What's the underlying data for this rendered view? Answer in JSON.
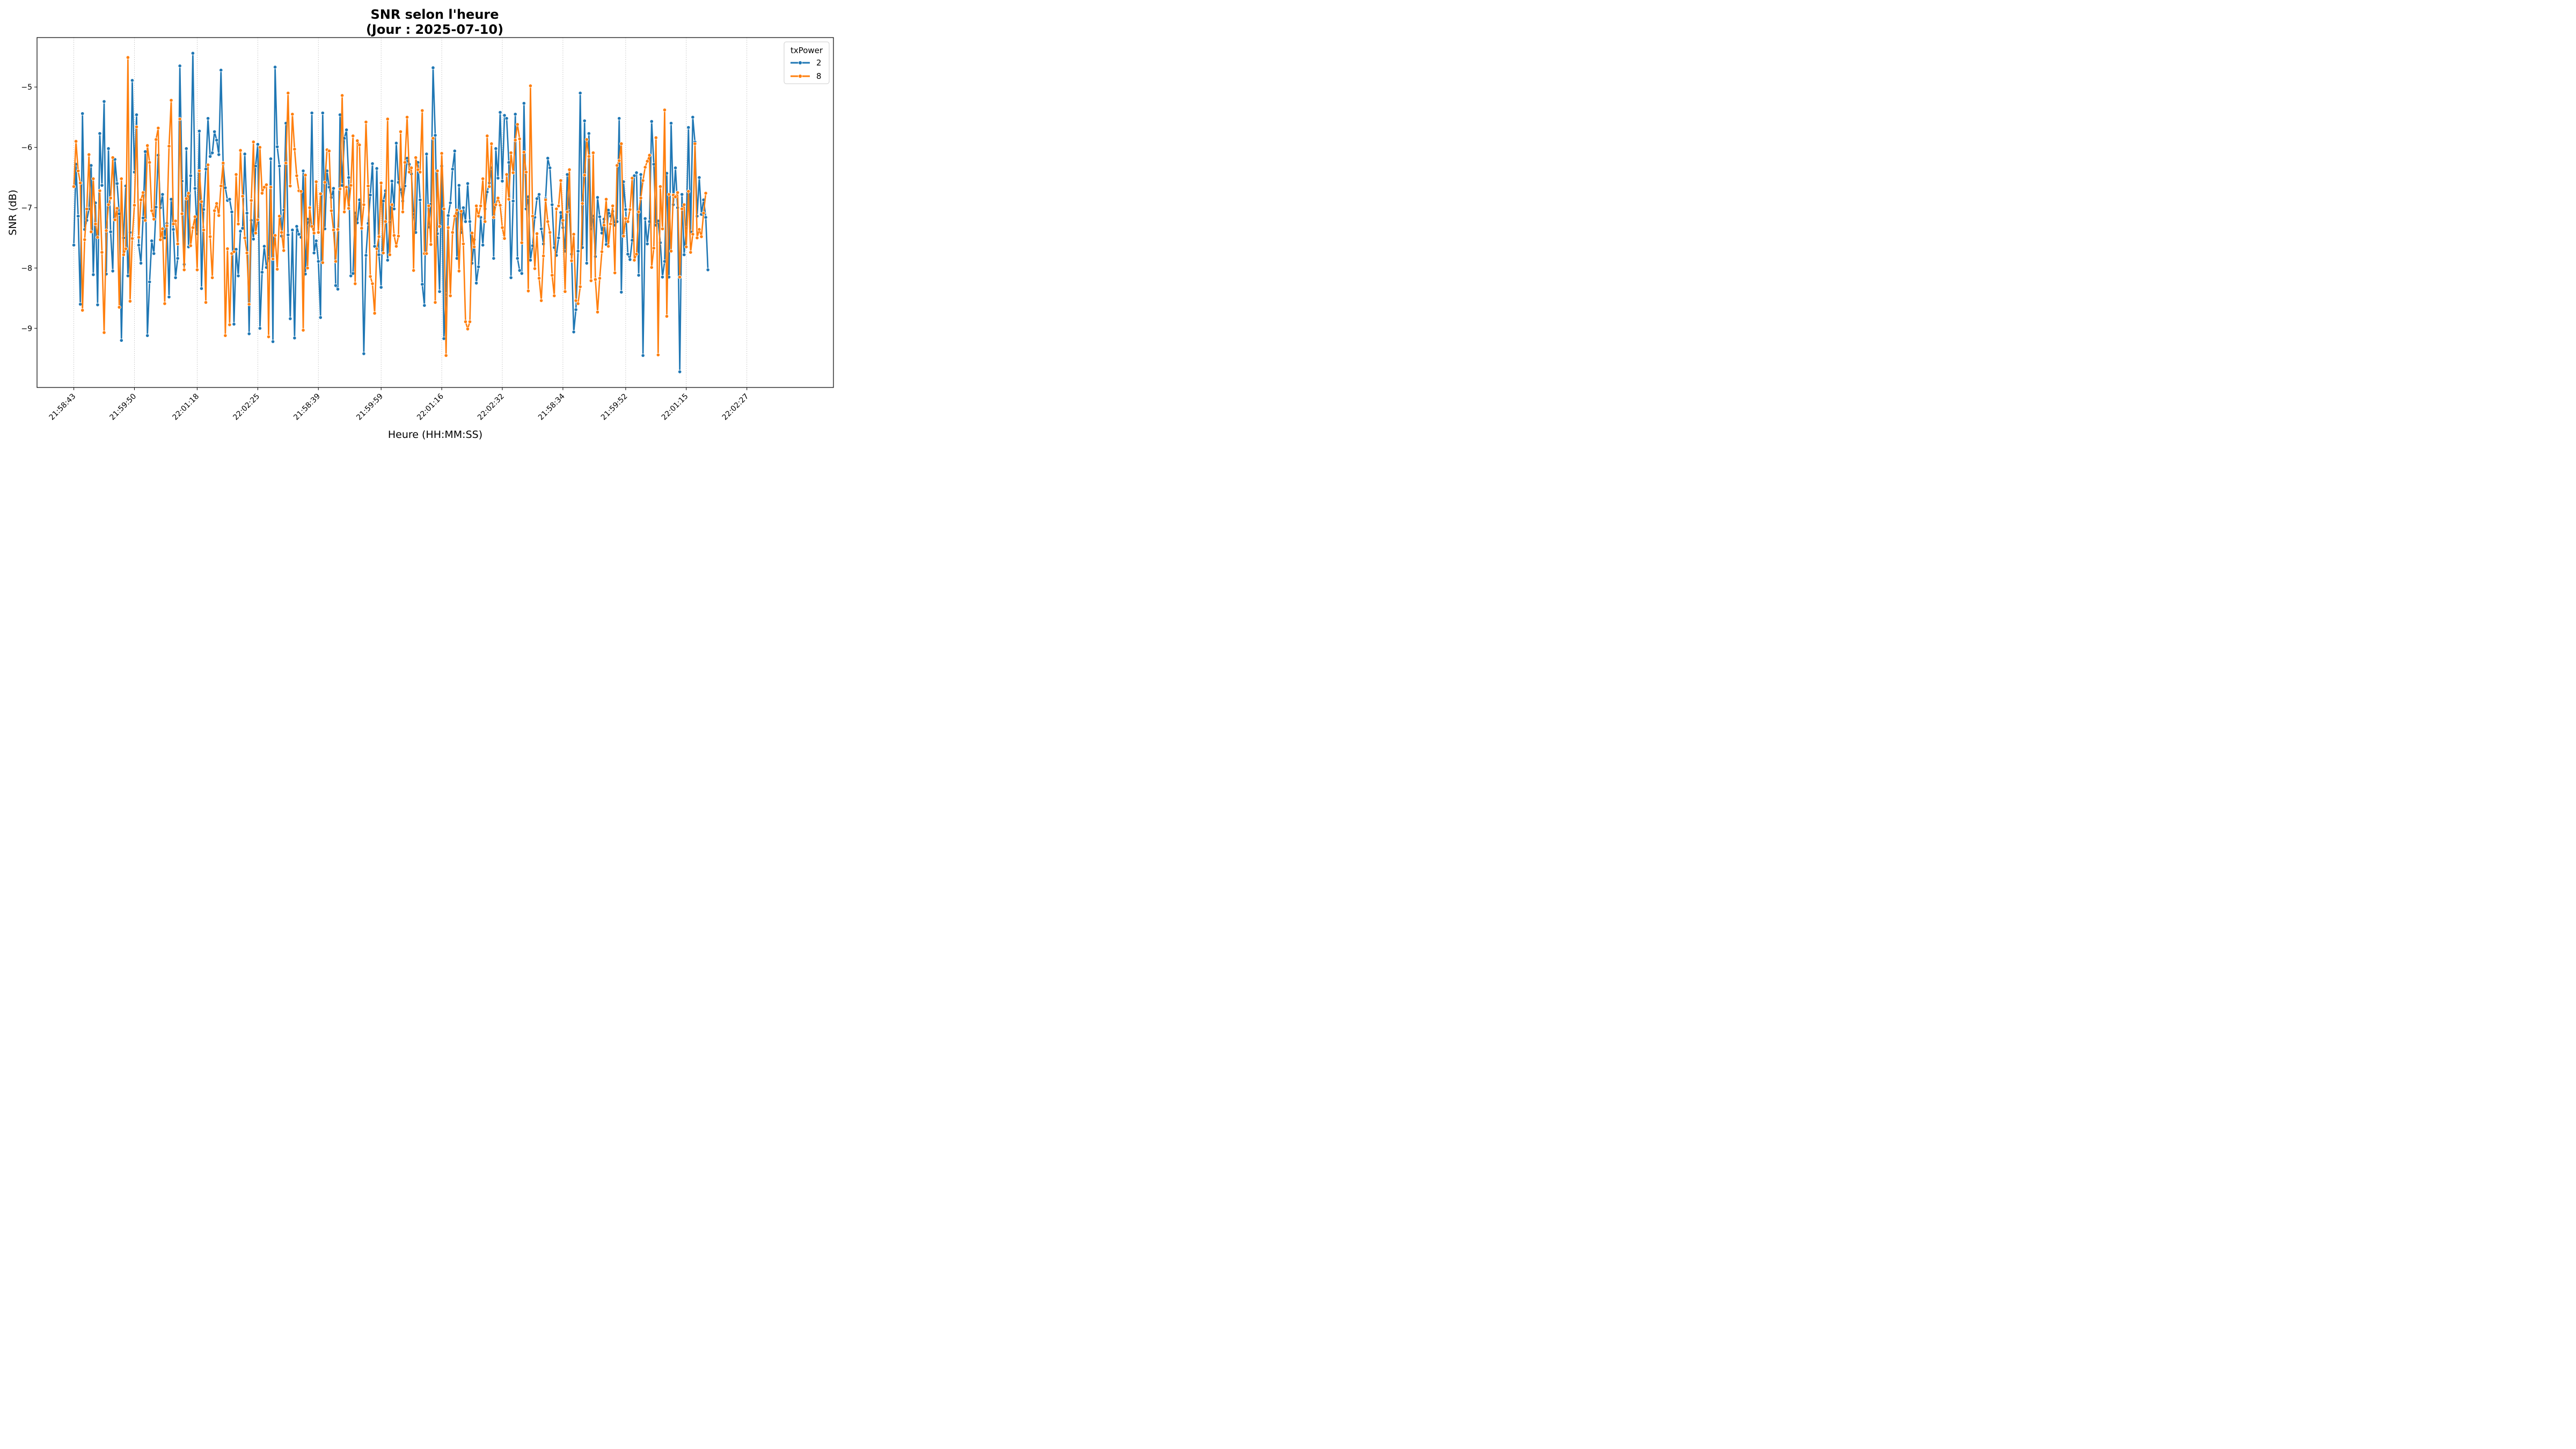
{
  "chart_data": {
    "type": "line",
    "title": "SNR selon l'heure",
    "subtitle": "(Jour : 2025-07-10)",
    "xlabel": "Heure (HH:MM:SS)",
    "ylabel": "SNR (dB)",
    "x_tick_labels": [
      "21:58:43",
      "21:59:50",
      "22:01:18",
      "22:02:25",
      "21:58:39",
      "21:59:59",
      "22:01:16",
      "22:02:32",
      "21:58:34",
      "21:59:52",
      "22:01:15",
      "22:02:27"
    ],
    "y_ticks": [
      -9,
      -8,
      -7,
      -6,
      -5
    ],
    "y_tick_labels": [
      "−9",
      "−8",
      "−7",
      "−6",
      "−5"
    ],
    "ylim": [
      -9.98,
      -4.18
    ],
    "x_index_range": [
      -17,
      351
    ],
    "x_tick_indices": [
      0,
      28,
      57,
      85,
      113,
      142,
      170,
      198,
      226,
      255,
      283,
      311
    ],
    "grid": "x-dotted",
    "legend": {
      "title": "txPower",
      "placement": "top-right"
    },
    "series": [
      {
        "name": "2",
        "color": "#1f77b4",
        "values": [
          -7.62,
          -6.28,
          -7.14,
          -8.6,
          -5.44,
          -7.36,
          -7.21,
          -7.02,
          -6.3,
          -8.11,
          -6.92,
          -8.61,
          -5.77,
          -6.63,
          -5.24,
          -8.1,
          -6.02,
          -7.4,
          -8.05,
          -6.2,
          -6.6,
          -7.1,
          -9.2,
          -7.5,
          -6.64,
          -8.13,
          -7.41,
          -4.89,
          -6.41,
          -5.46,
          -7.62,
          -7.92,
          -7.17,
          -6.07,
          -9.12,
          -8.23,
          -7.55,
          -7.76,
          -6.99,
          -6.13,
          -7.0,
          -6.78,
          -7.5,
          -7.26,
          -8.48,
          -6.86,
          -7.36,
          -8.16,
          -7.84,
          -4.65,
          -6.56,
          -7.94,
          -6.02,
          -7.65,
          -6.47,
          -4.44,
          -6.68,
          -7.43,
          -5.73,
          -8.34,
          -7.03,
          -6.36,
          -5.52,
          -6.15,
          -6.09,
          -5.74,
          -5.88,
          -6.12,
          -4.72,
          -6.28,
          -6.67,
          -6.88,
          -6.86,
          -7.07,
          -8.93,
          -7.69,
          -8.13,
          -7.39,
          -7.34,
          -6.11,
          -7.09,
          -9.09,
          -7.21,
          -7.52,
          -6.31,
          -5.95,
          -9.0,
          -8.07,
          -7.64,
          -7.99,
          -7.84,
          -6.19,
          -9.22,
          -4.67,
          -5.99,
          -6.31,
          -7.47,
          -7.04,
          -5.6,
          -7.45,
          -8.84,
          -7.37,
          -9.16,
          -7.31,
          -7.44,
          -7.49,
          -6.39,
          -8.1,
          -7.19,
          -7.3,
          -5.43,
          -7.75,
          -7.55,
          -7.89,
          -8.82,
          -5.43,
          -7.35,
          -6.39,
          -6.66,
          -6.83,
          -6.68,
          -8.29,
          -8.35,
          -5.46,
          -6.63,
          -5.85,
          -5.71,
          -6.5,
          -8.13,
          -8.09,
          -7.09,
          -7.25,
          -6.87,
          -7.33,
          -9.42,
          -7.79,
          -7.26,
          -6.79,
          -6.27,
          -7.64,
          -6.35,
          -7.78,
          -8.32,
          -6.89,
          -6.72,
          -7.87,
          -7.24,
          -6.56,
          -7.02,
          -5.93,
          -6.58,
          -6.7,
          -6.89,
          -6.64,
          -6.18,
          -6.28,
          -6.44,
          -7.11,
          -7.41,
          -6.25,
          -6.87,
          -8.27,
          -8.62,
          -6.11,
          -7.32,
          -6.94,
          -4.68,
          -5.8,
          -7.43,
          -8.39,
          -6.31,
          -9.17,
          -8.44,
          -7.13,
          -6.92,
          -6.36,
          -6.06,
          -7.84,
          -6.63,
          -7.41,
          -7.0,
          -7.23,
          -6.6,
          -7.23,
          -7.92,
          -7.53,
          -8.25,
          -7.98,
          -7.16,
          -7.62,
          -7.02,
          -6.74,
          -6.59,
          -6.34,
          -7.84,
          -6.02,
          -6.51,
          -5.42,
          -6.56,
          -5.47,
          -5.52,
          -6.25,
          -8.16,
          -6.89,
          -5.45,
          -7.84,
          -8.04,
          -8.09,
          -5.27,
          -7.02,
          -6.82,
          -7.87,
          -7.63,
          -7.16,
          -6.85,
          -6.78,
          -7.35,
          -7.6,
          -6.85,
          -6.18,
          -6.34,
          -6.95,
          -7.66,
          -7.79,
          -7.5,
          -7.08,
          -7.33,
          -7.72,
          -6.45,
          -7.06,
          -7.77,
          -9.06,
          -8.69,
          -7.72,
          -5.1,
          -7.66,
          -5.56,
          -7.92,
          -5.77,
          -7.35,
          -7.14,
          -7.81,
          -6.83,
          -7.15,
          -7.42,
          -7.19,
          -7.61,
          -7.04,
          -7.14,
          -7.06,
          -7.29,
          -7.23,
          -5.52,
          -8.4,
          -6.57,
          -7.03,
          -7.77,
          -7.86,
          -7.54,
          -6.47,
          -6.42,
          -8.12,
          -6.45,
          -9.45,
          -7.18,
          -7.6,
          -7.23,
          -5.57,
          -6.28,
          -7.29,
          -7.22,
          -7.58,
          -8.15,
          -7.89,
          -6.43,
          -8.15,
          -5.6,
          -6.95,
          -6.34,
          -7.0,
          -9.72,
          -6.78,
          -7.78,
          -7.34,
          -5.67,
          -7.4,
          -5.5,
          -5.91,
          -7.14,
          -6.5,
          -7.11,
          -6.87,
          -7.16,
          -8.03
        ]
      },
      {
        "name": "8",
        "color": "#ff7f0e",
        "values": [
          -6.65,
          -5.9,
          -6.39,
          -6.59,
          -8.7,
          -7.53,
          -7.02,
          -6.12,
          -7.4,
          -6.52,
          -7.27,
          -7.49,
          -6.72,
          -7.74,
          -9.07,
          -7.38,
          -6.95,
          -6.84,
          -6.17,
          -7.2,
          -7.01,
          -8.65,
          -6.52,
          -7.78,
          -7.68,
          -4.51,
          -8.55,
          -7.51,
          -6.96,
          -5.66,
          -7.49,
          -6.87,
          -6.75,
          -7.21,
          -5.97,
          -6.25,
          -7.05,
          -7.19,
          -5.87,
          -5.68,
          -7.53,
          -7.35,
          -8.59,
          -7.3,
          -5.98,
          -5.22,
          -7.27,
          -7.22,
          -7.6,
          -5.53,
          -7.1,
          -8.03,
          -6.85,
          -6.76,
          -7.63,
          -7.33,
          -7.15,
          -8.03,
          -6.39,
          -6.9,
          -7.37,
          -8.57,
          -6.29,
          -7.48,
          -8.16,
          -7.05,
          -6.93,
          -7.13,
          -6.64,
          -6.26,
          -9.12,
          -7.68,
          -8.94,
          -7.76,
          -7.73,
          -6.45,
          -7.27,
          -6.05,
          -6.81,
          -7.5,
          -7.75,
          -8.6,
          -6.88,
          -5.91,
          -7.42,
          -7.2,
          -6.0,
          -6.76,
          -6.66,
          -6.62,
          -9.14,
          -6.66,
          -7.85,
          -7.46,
          -8.02,
          -7.14,
          -7.41,
          -7.71,
          -6.26,
          -5.1,
          -6.64,
          -5.45,
          -6.03,
          -6.47,
          -6.72,
          -6.73,
          -9.03,
          -6.46,
          -8.0,
          -7.0,
          -7.31,
          -7.42,
          -6.57,
          -7.41,
          -6.77,
          -7.91,
          -6.58,
          -6.04,
          -6.06,
          -7.05,
          -7.37,
          -7.89,
          -7.36,
          -6.69,
          -5.14,
          -7.07,
          -6.66,
          -7.01,
          -6.63,
          -5.81,
          -8.26,
          -5.89,
          -5.96,
          -7.34,
          -6.95,
          -5.58,
          -6.64,
          -8.14,
          -8.26,
          -8.75,
          -7.68,
          -7.48,
          -6.59,
          -7.75,
          -7.23,
          -5.53,
          -7.78,
          -6.95,
          -7.46,
          -7.64,
          -7.47,
          -5.74,
          -7.07,
          -6.25,
          -5.5,
          -6.41,
          -6.34,
          -8.04,
          -6.17,
          -6.37,
          -6.41,
          -5.39,
          -7.76,
          -7.76,
          -6.97,
          -7.61,
          -5.85,
          -8.57,
          -6.39,
          -7.31,
          -6.1,
          -7.02,
          -9.45,
          -7.33,
          -8.46,
          -7.41,
          -7.14,
          -7.04,
          -8.05,
          -7.06,
          -7.6,
          -8.89,
          -9.01,
          -8.89,
          -7.42,
          -7.65,
          -6.97,
          -7.14,
          -6.97,
          -6.52,
          -7.23,
          -5.81,
          -6.65,
          -5.94,
          -7.16,
          -6.95,
          -6.84,
          -6.96,
          -7.33,
          -7.51,
          -6.45,
          -6.86,
          -6.09,
          -6.42,
          -5.88,
          -5.62,
          -5.86,
          -7.58,
          -6.08,
          -6.41,
          -8.38,
          -4.98,
          -7.14,
          -8.01,
          -7.43,
          -8.17,
          -8.54,
          -7.8,
          -6.87,
          -7.23,
          -7.41,
          -8.12,
          -8.46,
          -7.02,
          -6.97,
          -6.55,
          -7.21,
          -8.39,
          -7.07,
          -6.37,
          -7.88,
          -7.44,
          -8.54,
          -8.59,
          -8.31,
          -6.93,
          -6.46,
          -5.87,
          -6.15,
          -8.21,
          -6.09,
          -8.19,
          -8.73,
          -8.17,
          -7.73,
          -7.29,
          -6.86,
          -7.64,
          -7.27,
          -6.97,
          -8.08,
          -6.3,
          -6.22,
          -5.94,
          -7.47,
          -7.18,
          -7.23,
          -7.03,
          -6.51,
          -7.87,
          -7.77,
          -7.07,
          -6.84,
          -6.55,
          -6.33,
          -6.23,
          -6.13,
          -7.99,
          -7.67,
          -5.84,
          -9.44,
          -6.65,
          -7.35,
          -5.38,
          -8.8,
          -6.78,
          -7.72,
          -6.79,
          -6.82,
          -6.75,
          -8.15,
          -7.02,
          -6.95,
          -7.65,
          -6.73,
          -7.74,
          -7.44,
          -5.94,
          -7.5,
          -7.36,
          -7.48,
          -7.09,
          -6.76
        ]
      }
    ]
  }
}
